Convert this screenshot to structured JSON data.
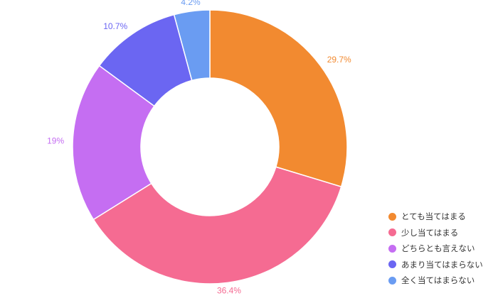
{
  "chart_data": {
    "type": "pie",
    "donut": true,
    "categories": [
      "とても当てはまる",
      "少し当てはまる",
      "どちらとも言えない",
      "あまり当てはまらない",
      "全く当てはまらない"
    ],
    "values": [
      29.7,
      36.4,
      19,
      10.7,
      4.2
    ],
    "value_labels": [
      "29.7%",
      "36.4%",
      "19%",
      "10.7%",
      "4.2%"
    ],
    "colors": [
      "#F28A30",
      "#F56B92",
      "#C56EF2",
      "#6B66F2",
      "#6A9CF2"
    ],
    "start_angle_deg": 0,
    "direction": "clockwise",
    "legend_position": "bottom-right"
  }
}
